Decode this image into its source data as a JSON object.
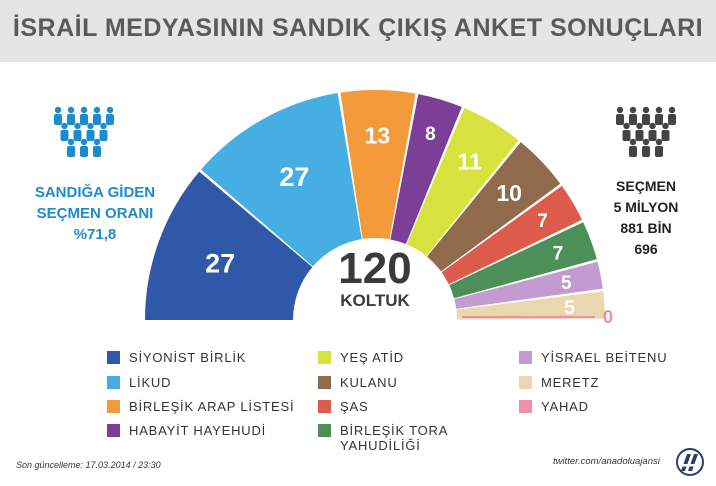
{
  "title": "İSRAİL MEDYASININ SANDIK ÇIKIŞ ANKET SONUÇLARI",
  "left_info": {
    "line1": "SANDIĞA GİDEN",
    "line2": "SEÇMEN ORANI",
    "line3": "%71,8"
  },
  "right_info": {
    "line1": "SEÇMEN",
    "line2": "5 MİLYON",
    "line3": "881 BİN",
    "line4": "696"
  },
  "center": {
    "total": "120",
    "label": "KOLTUK"
  },
  "footer": {
    "updated": "Son güncelleme: 17.03.2014 / 23:30",
    "twitter": "twitter.com/anadoluajansi"
  },
  "icons": [
    "people-icon",
    "anadolu-logo-icon"
  ],
  "chart_data": {
    "type": "parliament-semicircle",
    "total_label": "120 KOLTUK",
    "series": [
      {
        "name": "SİYONİST BİRLİK",
        "value": 27,
        "color": "#2f58a8"
      },
      {
        "name": "LİKUD",
        "value": 27,
        "color": "#47aee3"
      },
      {
        "name": "BİRLEŞİK ARAP LİSTESİ",
        "value": 13,
        "color": "#f39a3b"
      },
      {
        "name": "HABAYİT HAYEHUDİ",
        "value": 8,
        "color": "#7b3f98"
      },
      {
        "name": "YEŞ ATİD",
        "value": 11,
        "color": "#d8e23f"
      },
      {
        "name": "KULANU",
        "value": 10,
        "color": "#8f6a4b"
      },
      {
        "name": "ŞAS",
        "value": 7,
        "color": "#dc5b4a"
      },
      {
        "name": "BİRLEŞİK TORA YAHUDİLİĞİ",
        "value": 7,
        "color": "#4c8f58"
      },
      {
        "name": "YİSRAEL BEİTENU",
        "value": 5,
        "color": "#c39bd0"
      },
      {
        "name": "MERETZ",
        "value": 5,
        "color": "#ead7b0"
      },
      {
        "name": "YAHAD",
        "value": 0,
        "color": "#ee8fa6"
      }
    ]
  }
}
